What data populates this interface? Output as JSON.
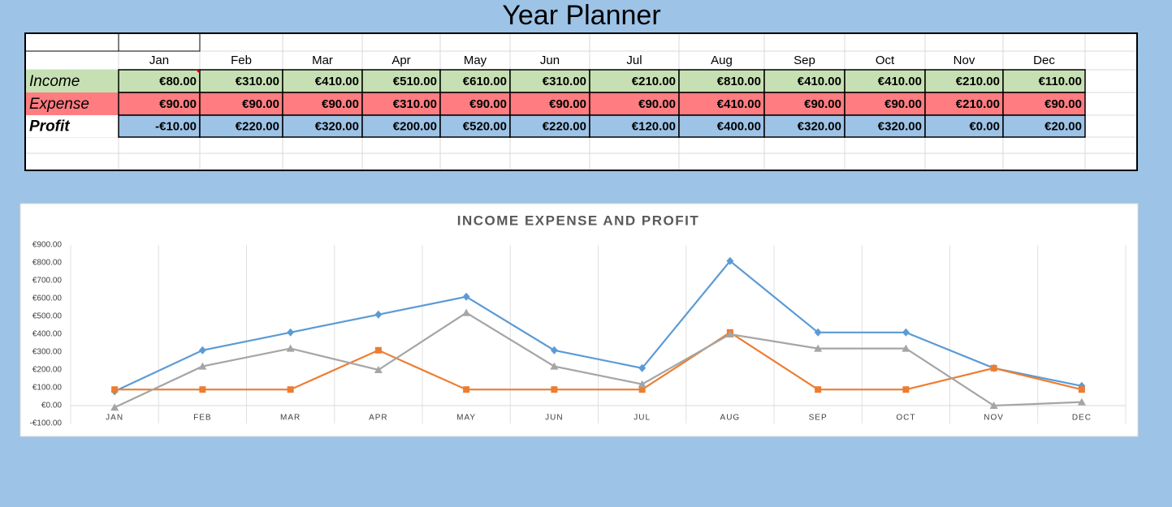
{
  "header": {
    "title": "Year Planner"
  },
  "table": {
    "columns": [
      "Jan",
      "Feb",
      "Mar",
      "Apr",
      "May",
      "Jun",
      "Jul",
      "Aug",
      "Sep",
      "Oct",
      "Nov",
      "Dec"
    ],
    "rows": [
      {
        "label": "Income",
        "cells": [
          "€80.00",
          "€310.00",
          "€410.00",
          "€510.00",
          "€610.00",
          "€310.00",
          "€210.00",
          "€810.00",
          "€410.00",
          "€410.00",
          "€210.00",
          "€110.00"
        ]
      },
      {
        "label": "Expense",
        "cells": [
          "€90.00",
          "€90.00",
          "€90.00",
          "€310.00",
          "€90.00",
          "€90.00",
          "€90.00",
          "€410.00",
          "€90.00",
          "€90.00",
          "€210.00",
          "€90.00"
        ]
      },
      {
        "label": "Profit",
        "cells": [
          "-€10.00",
          "€220.00",
          "€320.00",
          "€200.00",
          "€520.00",
          "€220.00",
          "€120.00",
          "€400.00",
          "€320.00",
          "€320.00",
          "€0.00",
          "€20.00"
        ]
      }
    ]
  },
  "chart_data": {
    "type": "line",
    "title": "INCOME EXPENSE AND PROFIT",
    "categories": [
      "JAN",
      "FEB",
      "MAR",
      "APR",
      "MAY",
      "JUN",
      "JUL",
      "AUG",
      "SEP",
      "OCT",
      "NOV",
      "DEC"
    ],
    "series": [
      {
        "color": "#5b9bd5",
        "marker": "diamond",
        "values": [
          80,
          310,
          410,
          510,
          610,
          310,
          210,
          810,
          410,
          410,
          210,
          110
        ]
      },
      {
        "color": "#ed7d31",
        "marker": "square",
        "values": [
          90,
          90,
          90,
          310,
          90,
          90,
          90,
          410,
          90,
          90,
          210,
          90
        ]
      },
      {
        "color": "#a5a5a5",
        "marker": "triangle",
        "values": [
          -10,
          220,
          320,
          200,
          520,
          220,
          120,
          400,
          320,
          320,
          0,
          20
        ]
      }
    ],
    "ylim": [
      -100,
      900
    ],
    "yticks": [
      {
        "value": -100,
        "label": "-€100.00"
      },
      {
        "value": 0,
        "label": "€0.00"
      },
      {
        "value": 100,
        "label": "€100.00"
      },
      {
        "value": 200,
        "label": "€200.00"
      },
      {
        "value": 300,
        "label": "€300.00"
      },
      {
        "value": 400,
        "label": "€400.00"
      },
      {
        "value": 500,
        "label": "€500.00"
      },
      {
        "value": 600,
        "label": "€600.00"
      },
      {
        "value": 700,
        "label": "€700.00"
      },
      {
        "value": 800,
        "label": "€800.00"
      },
      {
        "value": 900,
        "label": "€900.00"
      }
    ],
    "grid": true
  }
}
